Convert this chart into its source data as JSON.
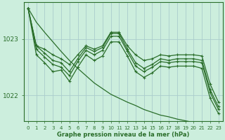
{
  "title": "Graphe pression niveau de la mer (hPa)",
  "background_color": "#cceedd",
  "grid_color": "#aacccc",
  "line_color": "#2a6e2a",
  "xlim": [
    -0.5,
    23.5
  ],
  "ylim": [
    1021.55,
    1023.65
  ],
  "yticks": [
    1022,
    1023
  ],
  "xticks": [
    0,
    1,
    2,
    3,
    4,
    5,
    6,
    7,
    8,
    9,
    10,
    11,
    12,
    13,
    14,
    15,
    16,
    17,
    18,
    19,
    20,
    21,
    22,
    23
  ],
  "series_upper": [
    1023.55,
    1022.88,
    1022.82,
    1022.72,
    1022.65,
    1022.55,
    1022.72,
    1022.88,
    1022.82,
    1022.88,
    1023.12,
    1023.12,
    1022.88,
    1022.72,
    1022.62,
    1022.65,
    1022.72,
    1022.7,
    1022.72,
    1022.72,
    1022.72,
    1022.7,
    1022.2,
    1021.88
  ],
  "series_mid1": [
    1023.55,
    1022.88,
    1022.75,
    1022.62,
    1022.58,
    1022.42,
    1022.65,
    1022.85,
    1022.78,
    1022.85,
    1023.1,
    1023.1,
    1022.82,
    1022.58,
    1022.48,
    1022.55,
    1022.65,
    1022.62,
    1022.65,
    1022.65,
    1022.65,
    1022.62,
    1022.1,
    1021.8
  ],
  "series_mid2": [
    1023.55,
    1022.82,
    1022.68,
    1022.55,
    1022.5,
    1022.35,
    1022.6,
    1022.8,
    1022.72,
    1022.8,
    1023.05,
    1023.05,
    1022.78,
    1022.52,
    1022.42,
    1022.5,
    1022.6,
    1022.58,
    1022.6,
    1022.6,
    1022.6,
    1022.58,
    1022.05,
    1021.75
  ],
  "series_low": [
    1023.55,
    1022.72,
    1022.58,
    1022.42,
    1022.45,
    1022.25,
    1022.5,
    1022.72,
    1022.62,
    1022.7,
    1022.95,
    1022.95,
    1022.7,
    1022.42,
    1022.32,
    1022.4,
    1022.52,
    1022.5,
    1022.52,
    1022.52,
    1022.52,
    1022.48,
    1021.95,
    1021.68
  ],
  "series_trend": [
    1023.55,
    1023.3,
    1023.12,
    1022.95,
    1022.78,
    1022.62,
    1022.48,
    1022.35,
    1022.22,
    1022.12,
    1022.02,
    1021.95,
    1021.88,
    1021.82,
    1021.75,
    1021.7,
    1021.65,
    1021.62,
    1021.58,
    1021.55,
    1021.52,
    1021.5,
    1021.48,
    1021.45
  ]
}
